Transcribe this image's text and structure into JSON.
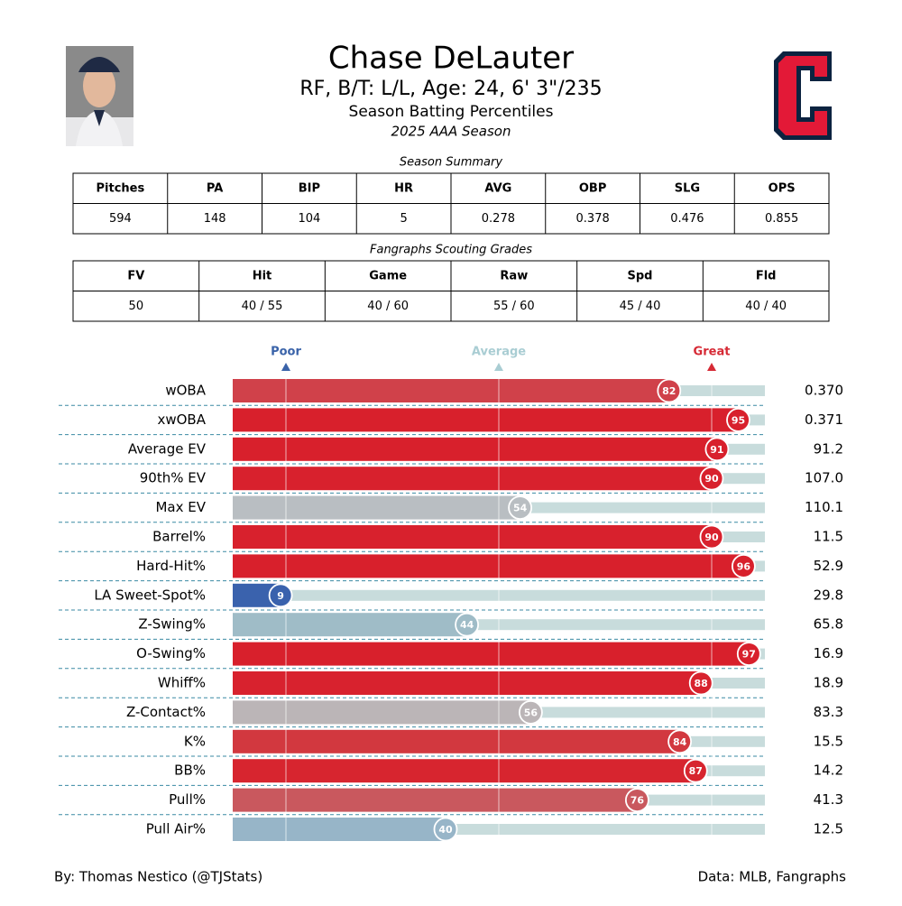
{
  "header": {
    "name": "Chase DeLauter",
    "info": "RF, B/T: L/L, Age: 24, 6' 3\"/235",
    "subtitle": "Season Batting Percentiles",
    "season": "2025 AAA Season"
  },
  "summary": {
    "title": "Season Summary",
    "columns": [
      "Pitches",
      "PA",
      "BIP",
      "HR",
      "AVG",
      "OBP",
      "SLG",
      "OPS"
    ],
    "rows": [
      [
        "594",
        "148",
        "104",
        "5",
        "0.278",
        "0.378",
        "0.476",
        "0.855"
      ]
    ]
  },
  "grades": {
    "title": "Fangraphs Scouting Grades",
    "columns": [
      "FV",
      "Hit",
      "Game",
      "Raw",
      "Spd",
      "Fld"
    ],
    "rows": [
      [
        "50",
        "40 / 55",
        "40 / 60",
        "55 / 60",
        "45 / 40",
        "40 / 40"
      ]
    ]
  },
  "chart_data": {
    "type": "bar",
    "orientation": "horizontal",
    "categories": [
      "wOBA",
      "xwOBA",
      "Average EV",
      "90th% EV",
      "Max EV",
      "Barrel%",
      "Hard-Hit%",
      "LA Sweet-Spot%",
      "Z-Swing%",
      "O-Swing%",
      "Whiff%",
      "Z-Contact%",
      "K%",
      "BB%",
      "Pull%",
      "Pull Air%"
    ],
    "values": [
      82,
      95,
      91,
      90,
      54,
      90,
      96,
      9,
      44,
      97,
      88,
      56,
      84,
      87,
      76,
      40
    ],
    "colors": [
      "#d0414a",
      "#d8202c",
      "#d8202c",
      "#d8212d",
      "#b9bec2",
      "#d8212d",
      "#d8202c",
      "#3a62ad",
      "#9fbcc7",
      "#d8202c",
      "#d8222e",
      "#bbb5b7",
      "#d2383f",
      "#d7252f",
      "#c9585e",
      "#97b5c8"
    ],
    "stat_values": [
      "0.370",
      "0.371",
      "91.2",
      "107.0",
      "110.1",
      "11.5",
      "52.9",
      "29.8",
      "65.8",
      "16.9",
      "18.9",
      "83.3",
      "15.5",
      "14.2",
      "41.3",
      "12.5"
    ],
    "xlim": [
      0,
      100
    ],
    "xticks": [
      {
        "value": 10,
        "label": "Poor"
      },
      {
        "value": 50,
        "label": "Average"
      },
      {
        "value": 90,
        "label": "Great"
      }
    ],
    "xtick_colors": [
      "#3a63a9",
      "#a9cdd3",
      "#d62a35"
    ],
    "track_color": "#c8dcdc"
  },
  "footer": {
    "left": "By: Thomas Nestico (@TJStats)",
    "right": "Data: MLB, Fangraphs"
  }
}
